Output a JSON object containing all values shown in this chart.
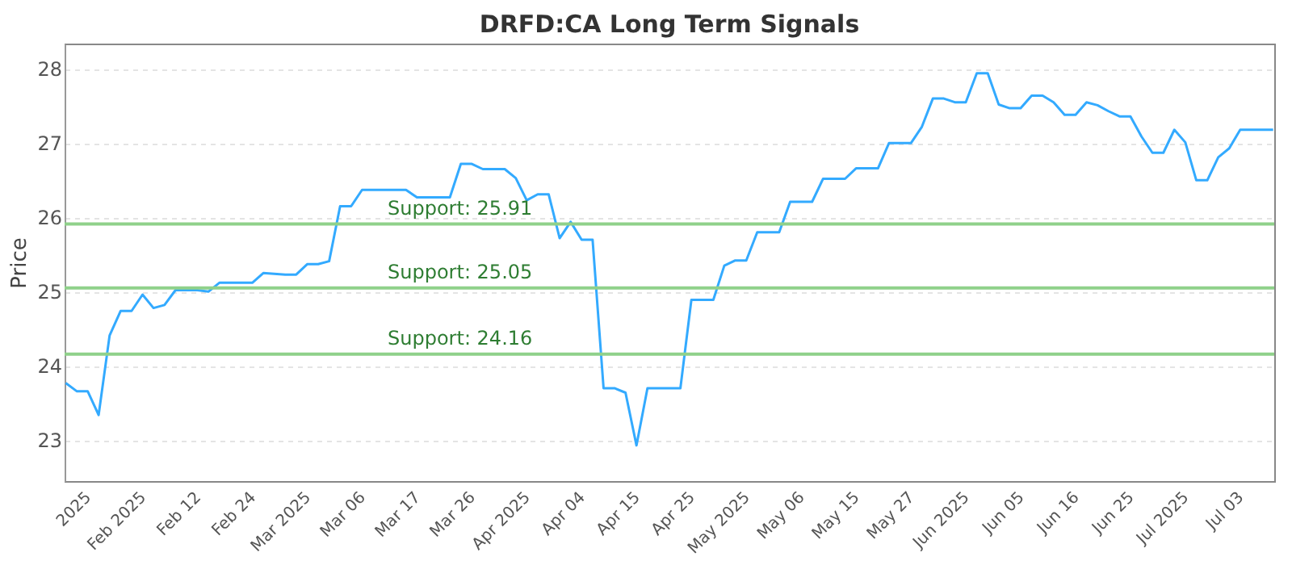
{
  "chart_data": {
    "type": "line",
    "title": "DRFD:CA Long Term Signals",
    "ylabel": "Price",
    "categories": [
      null,
      null,
      "2025",
      null,
      null,
      null,
      null,
      "Feb 2025",
      null,
      null,
      null,
      null,
      "Feb 12",
      null,
      null,
      null,
      null,
      "Feb 24",
      null,
      null,
      null,
      null,
      "Mar 2025",
      null,
      null,
      null,
      null,
      "Mar 06",
      null,
      null,
      null,
      null,
      "Mar 17",
      null,
      null,
      null,
      null,
      "Mar 26",
      null,
      null,
      null,
      null,
      "Apr 2025",
      null,
      null,
      null,
      null,
      "Apr 04",
      null,
      null,
      null,
      null,
      "Apr 15",
      null,
      null,
      null,
      null,
      "Apr 25",
      null,
      null,
      null,
      null,
      "May 2025",
      null,
      null,
      null,
      null,
      "May 06",
      null,
      null,
      null,
      null,
      "May 15",
      null,
      null,
      null,
      null,
      "May 27",
      null,
      null,
      null,
      null,
      "Jun 2025",
      null,
      null,
      null,
      null,
      "Jun 05",
      null,
      null,
      null,
      null,
      "Jun 16",
      null,
      null,
      null,
      null,
      "Jun 25",
      null,
      null,
      null,
      null,
      "Jul 2025",
      null,
      null,
      null,
      null,
      "Jul 03",
      null,
      null,
      null
    ],
    "series": [
      {
        "color": "#33aaff",
        "values": [
          23.77,
          23.66,
          23.66,
          23.34,
          24.41,
          24.74,
          24.74,
          24.96,
          24.78,
          24.82,
          25.02,
          25.02,
          25.02,
          25.0,
          25.12,
          25.12,
          25.12,
          25.12,
          25.25,
          25.24,
          25.23,
          25.23,
          25.37,
          25.37,
          25.41,
          26.15,
          26.15,
          26.37,
          26.37,
          26.37,
          26.37,
          26.37,
          26.27,
          26.27,
          26.27,
          26.27,
          26.72,
          26.72,
          26.65,
          26.65,
          26.65,
          26.53,
          26.23,
          26.31,
          26.31,
          25.72,
          25.94,
          25.7,
          25.7,
          23.7,
          23.7,
          23.64,
          22.93,
          23.7,
          23.7,
          23.7,
          23.7,
          24.89,
          24.89,
          24.89,
          25.35,
          25.42,
          25.42,
          25.8,
          25.8,
          25.8,
          26.21,
          26.21,
          26.21,
          26.52,
          26.52,
          26.52,
          26.66,
          26.66,
          26.66,
          27.0,
          27.0,
          27.0,
          27.22,
          27.6,
          27.6,
          27.55,
          27.55,
          27.94,
          27.94,
          27.52,
          27.47,
          27.47,
          27.64,
          27.64,
          27.55,
          27.38,
          27.38,
          27.55,
          27.51,
          27.43,
          27.36,
          27.36,
          27.09,
          26.87,
          26.87,
          27.18,
          27.01,
          26.5,
          26.5,
          26.81,
          26.93,
          27.18,
          27.18,
          27.18,
          27.18
        ]
      }
    ],
    "ylim": [
      22.45,
      28.34
    ],
    "yticks": [
      23,
      24,
      25,
      26,
      27,
      28
    ],
    "grid": "y",
    "marker": "none",
    "line_style": "solid",
    "ref_lines": [
      {
        "axis": "y",
        "value": 25.91,
        "label": "Support: 25.91",
        "color": "#8fd18a"
      },
      {
        "axis": "y",
        "value": 25.05,
        "label": "Support: 25.05",
        "color": "#8fd18a"
      },
      {
        "axis": "y",
        "value": 24.16,
        "label": "Support: 24.16",
        "color": "#8fd18a"
      }
    ]
  }
}
